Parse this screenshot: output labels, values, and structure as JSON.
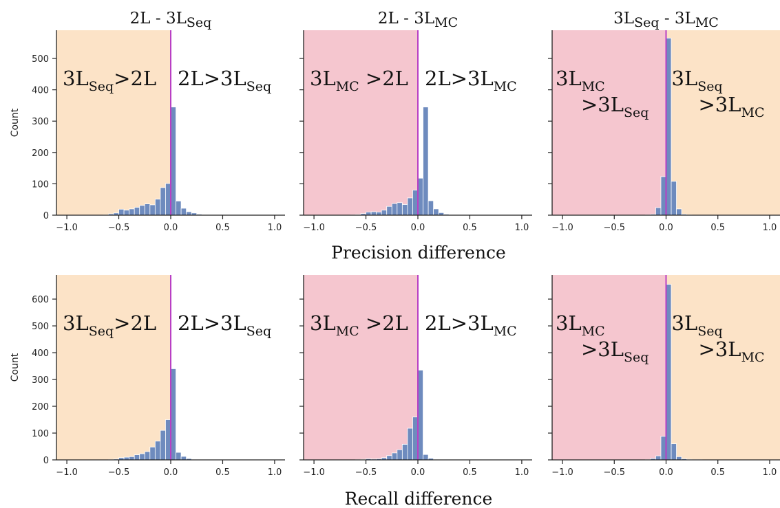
{
  "colors": {
    "orange_region": "#FCE3C7",
    "pink_region": "#F5C6CF",
    "bar": "#6E8BBE",
    "bar_edge": "#FFFFFF",
    "zero_line": "#B83FC4",
    "axis": "#222222"
  },
  "chart_data": {
    "type": "bar",
    "bin_width": 0.05,
    "bin_centers": [
      -0.975,
      -0.925,
      -0.875,
      -0.825,
      -0.775,
      -0.725,
      -0.675,
      -0.625,
      -0.575,
      -0.525,
      -0.475,
      -0.425,
      -0.375,
      -0.325,
      -0.275,
      -0.225,
      -0.175,
      -0.125,
      -0.075,
      -0.025,
      0.025,
      0.075,
      0.125,
      0.175,
      0.225,
      0.275,
      0.325,
      0.375,
      0.425,
      0.475,
      0.525,
      0.575,
      0.625,
      0.675,
      0.725,
      0.775,
      0.825,
      0.875,
      0.925,
      0.975
    ],
    "xlim": [
      -1.1,
      1.1
    ],
    "xticks": [
      -1.0,
      -0.5,
      0.0,
      0.5,
      1.0
    ],
    "xtick_labels": [
      "−1.0",
      "−0.5",
      "0.0",
      "0.5",
      "1.0"
    ],
    "rows": [
      {
        "xlabel": "Precision difference",
        "ylabel": "Count",
        "ylim": [
          0,
          590
        ],
        "yticks": [
          0,
          100,
          200,
          300,
          400,
          500
        ],
        "ytick_labels": [
          "0",
          "100",
          "200",
          "300",
          "400",
          "500"
        ]
      },
      {
        "xlabel": "Recall difference",
        "ylabel": "Count",
        "ylim": [
          0,
          690
        ],
        "yticks": [
          0,
          100,
          200,
          300,
          400,
          500,
          600
        ],
        "ytick_labels": [
          "0",
          "100",
          "200",
          "300",
          "400",
          "500",
          "600"
        ]
      }
    ],
    "panels": [
      {
        "row": 0,
        "col": 0,
        "title": {
          "main": "2L - 3L",
          "sub": "Seq"
        },
        "left_region_color": "orange_region",
        "right_region_color": "none",
        "left_label": [
          {
            "text": "3L",
            "sub": "Seq",
            "rest": ">2L"
          }
        ],
        "right_label": [
          {
            "text": "2L>3L",
            "sub": "Seq",
            "rest": ""
          }
        ],
        "label_layout": "single",
        "values": [
          0,
          0,
          0,
          0,
          0,
          0,
          0,
          1,
          4,
          7,
          19,
          16,
          20,
          25,
          31,
          36,
          33,
          51,
          88,
          101,
          345,
          45,
          22,
          11,
          7,
          3,
          1,
          1,
          0,
          0,
          0,
          0,
          0,
          0,
          0,
          0,
          0,
          0,
          0,
          0
        ]
      },
      {
        "row": 0,
        "col": 1,
        "title": {
          "main": "2L - 3L",
          "sub": "MC"
        },
        "left_region_color": "pink_region",
        "right_region_color": "none",
        "left_label": [
          {
            "text": "3L",
            "sub": "MC",
            "rest": " >2L"
          }
        ],
        "right_label": [
          {
            "text": "2L>3L",
            "sub": "MC",
            "rest": ""
          }
        ],
        "label_layout": "single",
        "values": [
          0,
          0,
          0,
          0,
          0,
          0,
          0,
          1,
          2,
          5,
          10,
          11,
          10,
          16,
          28,
          37,
          40,
          34,
          55,
          80,
          118,
          345,
          46,
          20,
          8,
          3,
          1,
          0,
          0,
          0,
          0,
          0,
          0,
          0,
          0,
          0,
          0,
          0,
          0,
          0
        ]
      },
      {
        "row": 0,
        "col": 2,
        "title": {
          "main": "3L",
          "sub": "Seq",
          "mid": " - 3L",
          "sub2": "MC"
        },
        "left_region_color": "pink_region",
        "right_region_color": "orange_region",
        "left_label": [
          {
            "text": "3L",
            "sub": "MC",
            "rest": ""
          },
          {
            "text": ">3L",
            "sub": "Seq",
            "rest": ""
          }
        ],
        "right_label": [
          {
            "text": "3L",
            "sub": "Seq",
            "rest": ""
          },
          {
            "text": ">3L",
            "sub": "MC",
            "rest": ""
          }
        ],
        "label_layout": "stacked",
        "values": [
          0,
          0,
          0,
          0,
          0,
          0,
          0,
          0,
          0,
          0,
          0,
          0,
          0,
          0,
          0,
          0,
          1,
          3,
          24,
          123,
          565,
          108,
          20,
          3,
          1,
          0,
          0,
          0,
          0,
          0,
          0,
          0,
          0,
          0,
          0,
          0,
          0,
          0,
          0,
          0
        ]
      },
      {
        "row": 1,
        "col": 0,
        "title": null,
        "left_region_color": "orange_region",
        "right_region_color": "none",
        "left_label": [
          {
            "text": "3L",
            "sub": "Seq",
            "rest": ">2L"
          }
        ],
        "right_label": [
          {
            "text": "2L>3L",
            "sub": "Seq",
            "rest": ""
          }
        ],
        "label_layout": "single",
        "values": [
          0,
          0,
          0,
          0,
          0,
          0,
          0,
          0,
          1,
          3,
          8,
          10,
          12,
          19,
          23,
          31,
          48,
          70,
          110,
          150,
          340,
          28,
          13,
          5,
          2,
          1,
          0,
          0,
          0,
          0,
          0,
          0,
          0,
          0,
          0,
          0,
          0,
          0,
          0,
          0
        ]
      },
      {
        "row": 1,
        "col": 1,
        "title": null,
        "left_region_color": "pink_region",
        "right_region_color": "none",
        "left_label": [
          {
            "text": "3L",
            "sub": "MC",
            "rest": " >2L"
          }
        ],
        "right_label": [
          {
            "text": "2L>3L",
            "sub": "MC",
            "rest": ""
          }
        ],
        "label_layout": "single",
        "values": [
          0,
          0,
          0,
          0,
          0,
          0,
          0,
          0,
          1,
          2,
          4,
          3,
          4,
          8,
          16,
          26,
          38,
          58,
          118,
          160,
          335,
          20,
          6,
          2,
          1,
          0,
          0,
          0,
          0,
          0,
          0,
          0,
          0,
          0,
          0,
          0,
          0,
          0,
          0,
          0
        ]
      },
      {
        "row": 1,
        "col": 2,
        "title": null,
        "left_region_color": "pink_region",
        "right_region_color": "orange_region",
        "left_label": [
          {
            "text": "3L",
            "sub": "MC",
            "rest": ""
          },
          {
            "text": ">3L",
            "sub": "Seq",
            "rest": ""
          }
        ],
        "right_label": [
          {
            "text": "3L",
            "sub": "Seq",
            "rest": ""
          },
          {
            "text": ">3L",
            "sub": "MC",
            "rest": ""
          }
        ],
        "label_layout": "stacked",
        "values": [
          0,
          0,
          0,
          0,
          0,
          0,
          0,
          0,
          0,
          0,
          0,
          0,
          0,
          0,
          0,
          0,
          1,
          5,
          15,
          88,
          655,
          60,
          12,
          4,
          2,
          1,
          1,
          0,
          0,
          0,
          0,
          0,
          0,
          0,
          0,
          0,
          0,
          0,
          0,
          0
        ]
      }
    ]
  }
}
